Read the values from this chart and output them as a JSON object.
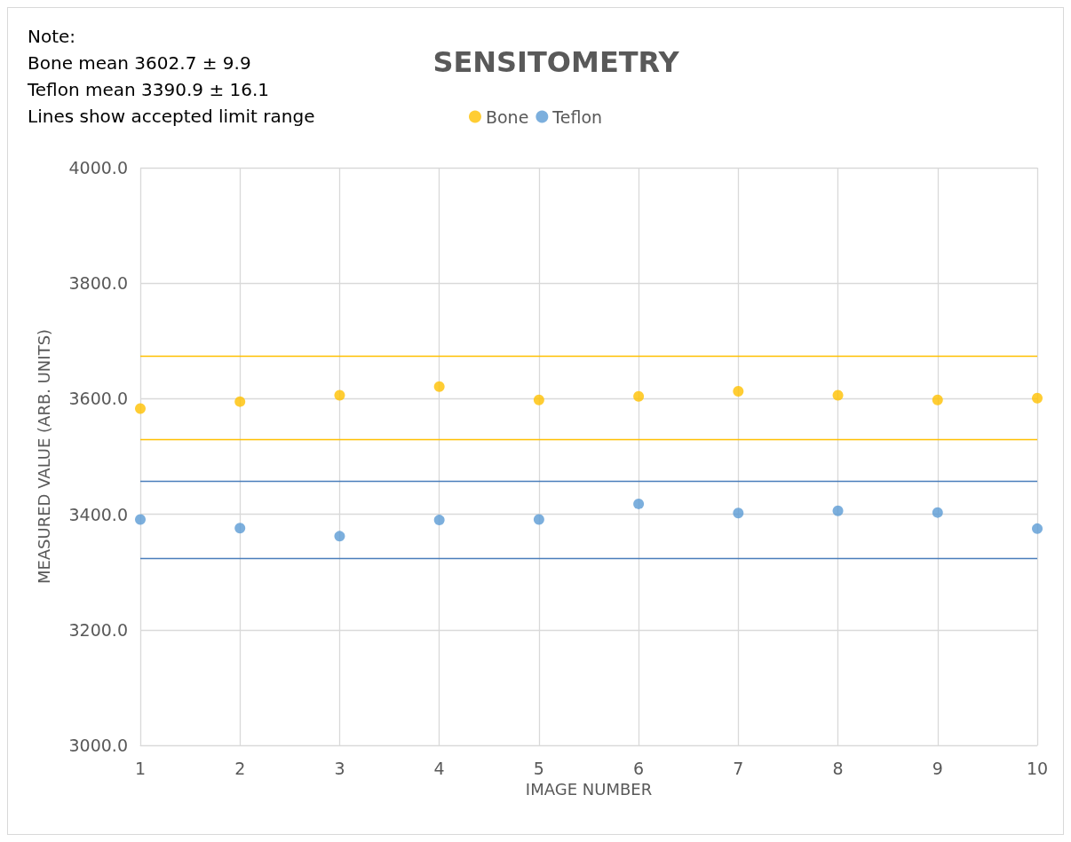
{
  "chart_data": {
    "type": "scatter",
    "title": "SENSITOMETRY",
    "xlabel": "IMAGE NUMBER",
    "ylabel": "MEASURED VALUE (ARB. UNITS)",
    "annotations": [
      "Note:",
      "Bone mean 3602.7 ± 9.9",
      "Teflon mean 3390.9 ± 16.1",
      "Lines show accepted limit range"
    ],
    "x": [
      1,
      2,
      3,
      4,
      5,
      6,
      7,
      8,
      9,
      10
    ],
    "series": [
      {
        "name": "Bone",
        "color": "#ffc000",
        "values": [
          3583,
          3595,
          3606,
          3621,
          3598,
          3604,
          3613,
          3606,
          3598,
          3601
        ]
      },
      {
        "name": "Teflon",
        "color": "#5b9bd5",
        "values": [
          3391,
          3376,
          3362,
          3390,
          3391,
          3418,
          3402,
          3406,
          3403,
          3375
        ]
      }
    ],
    "ref_lines": [
      {
        "axis": "y",
        "value": 3674,
        "color": "#ffc000"
      },
      {
        "axis": "y",
        "value": 3530,
        "color": "#ffc000"
      },
      {
        "axis": "y",
        "value": 3458,
        "color": "#4a7ebb"
      },
      {
        "axis": "y",
        "value": 3323,
        "color": "#4a7ebb"
      }
    ],
    "xlim": [
      1,
      10
    ],
    "xticks": [
      1,
      2,
      3,
      4,
      5,
      6,
      7,
      8,
      9,
      10
    ],
    "ylim": [
      3000,
      4000
    ],
    "yticks": [
      {
        "value": 3000,
        "label": "3000.0"
      },
      {
        "value": 3200,
        "label": "3200.0"
      },
      {
        "value": 3400,
        "label": "3400.0"
      },
      {
        "value": 3600,
        "label": "3600.0"
      },
      {
        "value": 3800,
        "label": "3800.0"
      },
      {
        "value": 4000,
        "label": "4000.0"
      }
    ],
    "grid": true,
    "legend": "top",
    "marker": "circle"
  }
}
